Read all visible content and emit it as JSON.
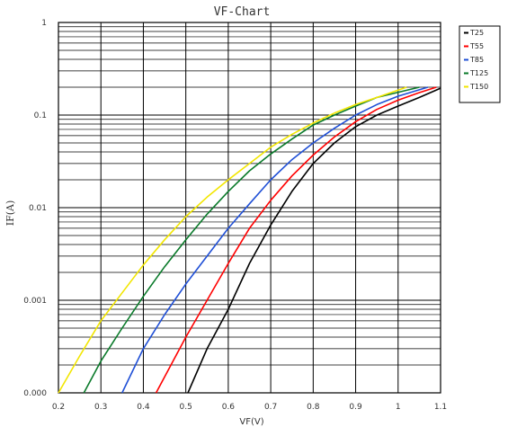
{
  "chart_data": {
    "type": "line",
    "title": "VF-Chart",
    "xlabel": "VF(V)",
    "ylabel": "IF(A)",
    "x_scale": "linear",
    "y_scale": "log",
    "xlim": [
      0.2,
      1.1
    ],
    "ylim": [
      0.0001,
      1
    ],
    "x_ticks": [
      0.2,
      0.3,
      0.4,
      0.5,
      0.6,
      0.7,
      0.8,
      0.9,
      1.0,
      1.1
    ],
    "x_tick_labels": [
      "0.2",
      "0.3",
      "0.4",
      "0.5",
      "0.6",
      "0.7",
      "0.8",
      "0.9",
      "1",
      "1.1"
    ],
    "y_ticks": [
      0.0001,
      0.001,
      0.01,
      0.1,
      1
    ],
    "y_tick_labels": [
      "0.000",
      "0.001",
      "0.01",
      "0.1",
      "1"
    ],
    "grid": true,
    "legend_position": "right, outside plot, top",
    "series": [
      {
        "name": "T25",
        "color": "#000000",
        "x": [
          0.505,
          0.55,
          0.6,
          0.65,
          0.7,
          0.75,
          0.8,
          0.85,
          0.9,
          0.95,
          1.0,
          1.05,
          1.1
        ],
        "y": [
          0.0001,
          0.0003,
          0.0008,
          0.0025,
          0.0065,
          0.015,
          0.03,
          0.05,
          0.075,
          0.1,
          0.125,
          0.155,
          0.195
        ]
      },
      {
        "name": "T55",
        "color": "#ff0000",
        "x": [
          0.43,
          0.5,
          0.55,
          0.6,
          0.65,
          0.7,
          0.75,
          0.8,
          0.85,
          0.9,
          0.95,
          1.0,
          1.05,
          1.09
        ],
        "y": [
          0.0001,
          0.0004,
          0.001,
          0.0025,
          0.006,
          0.012,
          0.022,
          0.037,
          0.058,
          0.085,
          0.115,
          0.145,
          0.175,
          0.2
        ]
      },
      {
        "name": "T85",
        "color": "#1f4fd6",
        "x": [
          0.35,
          0.4,
          0.45,
          0.5,
          0.55,
          0.6,
          0.65,
          0.7,
          0.75,
          0.8,
          0.85,
          0.9,
          0.95,
          1.0,
          1.07
        ],
        "y": [
          0.0001,
          0.0003,
          0.0007,
          0.0015,
          0.003,
          0.006,
          0.011,
          0.02,
          0.033,
          0.05,
          0.072,
          0.1,
          0.13,
          0.16,
          0.2
        ]
      },
      {
        "name": "T125",
        "color": "#0a7a2a",
        "x": [
          0.26,
          0.3,
          0.35,
          0.4,
          0.45,
          0.5,
          0.55,
          0.6,
          0.65,
          0.7,
          0.75,
          0.8,
          0.85,
          0.9,
          0.95,
          1.05
        ],
        "y": [
          0.0001,
          0.00022,
          0.0005,
          0.0011,
          0.0023,
          0.0045,
          0.0085,
          0.015,
          0.025,
          0.038,
          0.055,
          0.078,
          0.1,
          0.125,
          0.155,
          0.2
        ]
      },
      {
        "name": "T150",
        "color": "#f2e600",
        "x": [
          0.2,
          0.25,
          0.3,
          0.35,
          0.4,
          0.45,
          0.5,
          0.55,
          0.6,
          0.65,
          0.7,
          0.75,
          0.8,
          0.85,
          0.9,
          0.95,
          1.02
        ],
        "y": [
          0.0001,
          0.00025,
          0.0006,
          0.0012,
          0.0024,
          0.0045,
          0.008,
          0.013,
          0.02,
          0.03,
          0.045,
          0.062,
          0.082,
          0.105,
          0.13,
          0.155,
          0.2
        ]
      }
    ]
  }
}
